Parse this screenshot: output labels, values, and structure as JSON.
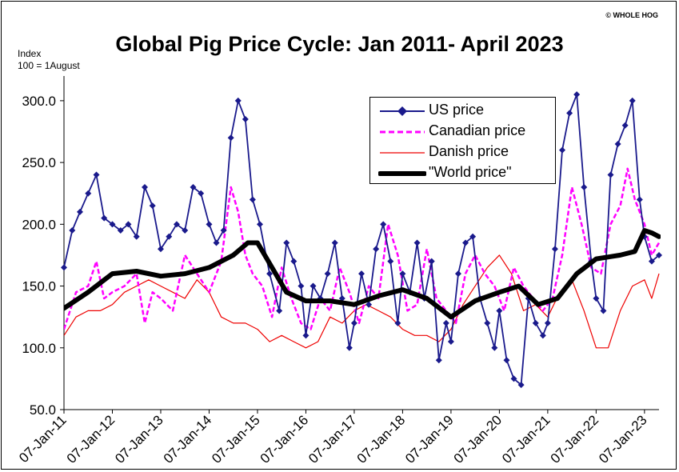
{
  "copyright": "© WHOLE HOG",
  "chart_data": {
    "type": "line",
    "title": "Global Pig Price Cycle: Jan 2011- April 2023",
    "ylabel_lines": [
      "Index",
      "100 = 1August"
    ],
    "xlabel": "",
    "ylim": [
      50,
      320
    ],
    "xlim": [
      2011.0,
      2023.3
    ],
    "y_ticks": [
      "300.0",
      "250.0",
      "200.0",
      "150.0",
      "100.0",
      "50.0"
    ],
    "y_tick_values": [
      300,
      250,
      200,
      150,
      100,
      50
    ],
    "x_ticks": [
      "07-Jan-11",
      "07-Jan-12",
      "07-Jan-13",
      "07-Jan-14",
      "07-Jan-15",
      "07-Jan-16",
      "07-Jan-17",
      "07-Jan-18",
      "07-Jan-19",
      "07-Jan-20",
      "07-Jan-21",
      "07-Jan-22",
      "07-Jan-23"
    ],
    "x_tick_values": [
      2011,
      2012,
      2013,
      2014,
      2015,
      2016,
      2017,
      2018,
      2019,
      2020,
      2021,
      2022,
      2023
    ],
    "legend_position": "top-right",
    "grid": false,
    "series": [
      {
        "name": "US price",
        "color": "#1a1a8c",
        "style": "line-diamond",
        "x": [
          2011.0,
          2011.17,
          2011.33,
          2011.5,
          2011.67,
          2011.83,
          2012.0,
          2012.17,
          2012.33,
          2012.5,
          2012.67,
          2012.83,
          2013.0,
          2013.17,
          2013.33,
          2013.5,
          2013.67,
          2013.83,
          2014.0,
          2014.15,
          2014.3,
          2014.45,
          2014.6,
          2014.75,
          2014.9,
          2015.05,
          2015.25,
          2015.45,
          2015.6,
          2015.75,
          2015.9,
          2016.0,
          2016.15,
          2016.3,
          2016.45,
          2016.6,
          2016.75,
          2016.9,
          2017.0,
          2017.15,
          2017.3,
          2017.45,
          2017.6,
          2017.75,
          2017.9,
          2018.0,
          2018.15,
          2018.3,
          2018.45,
          2018.6,
          2018.75,
          2018.9,
          2019.0,
          2019.15,
          2019.3,
          2019.45,
          2019.6,
          2019.75,
          2019.9,
          2020.0,
          2020.15,
          2020.3,
          2020.45,
          2020.6,
          2020.75,
          2020.9,
          2021.0,
          2021.15,
          2021.3,
          2021.45,
          2021.6,
          2021.75,
          2021.9,
          2022.0,
          2022.15,
          2022.3,
          2022.45,
          2022.6,
          2022.75,
          2022.9,
          2023.0,
          2023.15,
          2023.3
        ],
        "values": [
          165,
          195,
          210,
          225,
          240,
          205,
          200,
          195,
          200,
          190,
          230,
          215,
          180,
          190,
          200,
          195,
          230,
          225,
          200,
          185,
          195,
          270,
          300,
          285,
          220,
          200,
          160,
          130,
          185,
          170,
          150,
          110,
          150,
          140,
          160,
          185,
          140,
          100,
          120,
          160,
          135,
          180,
          200,
          170,
          120,
          160,
          145,
          185,
          140,
          170,
          90,
          120,
          105,
          160,
          185,
          190,
          140,
          120,
          100,
          130,
          90,
          75,
          70,
          140,
          120,
          110,
          120,
          180,
          260,
          290,
          305,
          230,
          170,
          140,
          130,
          240,
          265,
          280,
          300,
          220,
          190,
          170,
          175
        ]
      },
      {
        "name": "Canadian price",
        "color": "#ff00ff",
        "style": "dashed",
        "x": [
          2011.0,
          2011.25,
          2011.5,
          2011.67,
          2011.83,
          2012.0,
          2012.25,
          2012.5,
          2012.67,
          2012.83,
          2013.0,
          2013.25,
          2013.5,
          2013.75,
          2014.0,
          2014.25,
          2014.45,
          2014.6,
          2014.75,
          2014.9,
          2015.1,
          2015.3,
          2015.5,
          2015.7,
          2015.9,
          2016.1,
          2016.3,
          2016.5,
          2016.7,
          2016.9,
          2017.1,
          2017.3,
          2017.5,
          2017.7,
          2017.9,
          2018.1,
          2018.3,
          2018.5,
          2018.7,
          2018.9,
          2019.1,
          2019.3,
          2019.5,
          2019.7,
          2019.9,
          2020.1,
          2020.3,
          2020.5,
          2020.7,
          2020.9,
          2021.1,
          2021.3,
          2021.5,
          2021.7,
          2021.9,
          2022.1,
          2022.3,
          2022.5,
          2022.65,
          2022.8,
          2023.0,
          2023.15,
          2023.3
        ],
        "values": [
          115,
          145,
          150,
          170,
          140,
          145,
          150,
          160,
          120,
          145,
          140,
          130,
          175,
          160,
          145,
          170,
          230,
          210,
          175,
          160,
          150,
          125,
          165,
          140,
          120,
          115,
          140,
          130,
          165,
          145,
          120,
          150,
          140,
          200,
          175,
          130,
          135,
          180,
          140,
          130,
          120,
          160,
          175,
          160,
          150,
          130,
          165,
          150,
          140,
          130,
          140,
          175,
          230,
          200,
          165,
          160,
          200,
          215,
          245,
          220,
          200,
          175,
          185
        ]
      },
      {
        "name": "Danish price",
        "color": "#ee0000",
        "style": "solid",
        "x": [
          2011.0,
          2011.25,
          2011.5,
          2011.75,
          2012.0,
          2012.25,
          2012.5,
          2012.75,
          2013.0,
          2013.25,
          2013.5,
          2013.75,
          2014.0,
          2014.25,
          2014.5,
          2014.75,
          2015.0,
          2015.25,
          2015.5,
          2015.75,
          2016.0,
          2016.25,
          2016.5,
          2016.75,
          2017.0,
          2017.25,
          2017.5,
          2017.75,
          2018.0,
          2018.25,
          2018.5,
          2018.75,
          2019.0,
          2019.25,
          2019.5,
          2019.75,
          2020.0,
          2020.25,
          2020.5,
          2020.75,
          2021.0,
          2021.25,
          2021.5,
          2021.75,
          2022.0,
          2022.25,
          2022.5,
          2022.75,
          2023.0,
          2023.15,
          2023.3
        ],
        "values": [
          110,
          125,
          130,
          130,
          135,
          145,
          150,
          155,
          150,
          145,
          140,
          155,
          145,
          125,
          120,
          120,
          115,
          105,
          110,
          105,
          100,
          105,
          125,
          120,
          130,
          135,
          130,
          125,
          115,
          110,
          110,
          105,
          115,
          135,
          150,
          165,
          175,
          160,
          130,
          135,
          125,
          145,
          155,
          130,
          100,
          100,
          130,
          150,
          155,
          140,
          160
        ]
      },
      {
        "name": "\"World price\"",
        "color": "#000000",
        "style": "thick",
        "x": [
          2011.0,
          2011.5,
          2012.0,
          2012.5,
          2013.0,
          2013.5,
          2014.0,
          2014.5,
          2014.8,
          2015.0,
          2015.3,
          2015.6,
          2016.0,
          2016.5,
          2017.0,
          2017.5,
          2018.0,
          2018.5,
          2019.0,
          2019.5,
          2020.0,
          2020.4,
          2020.8,
          2021.2,
          2021.6,
          2022.0,
          2022.5,
          2022.8,
          2023.0,
          2023.15,
          2023.3
        ],
        "values": [
          132,
          145,
          160,
          162,
          158,
          160,
          165,
          175,
          185,
          185,
          165,
          145,
          138,
          138,
          135,
          142,
          147,
          140,
          125,
          138,
          145,
          150,
          135,
          140,
          160,
          172,
          175,
          178,
          195,
          193,
          190
        ]
      }
    ]
  }
}
